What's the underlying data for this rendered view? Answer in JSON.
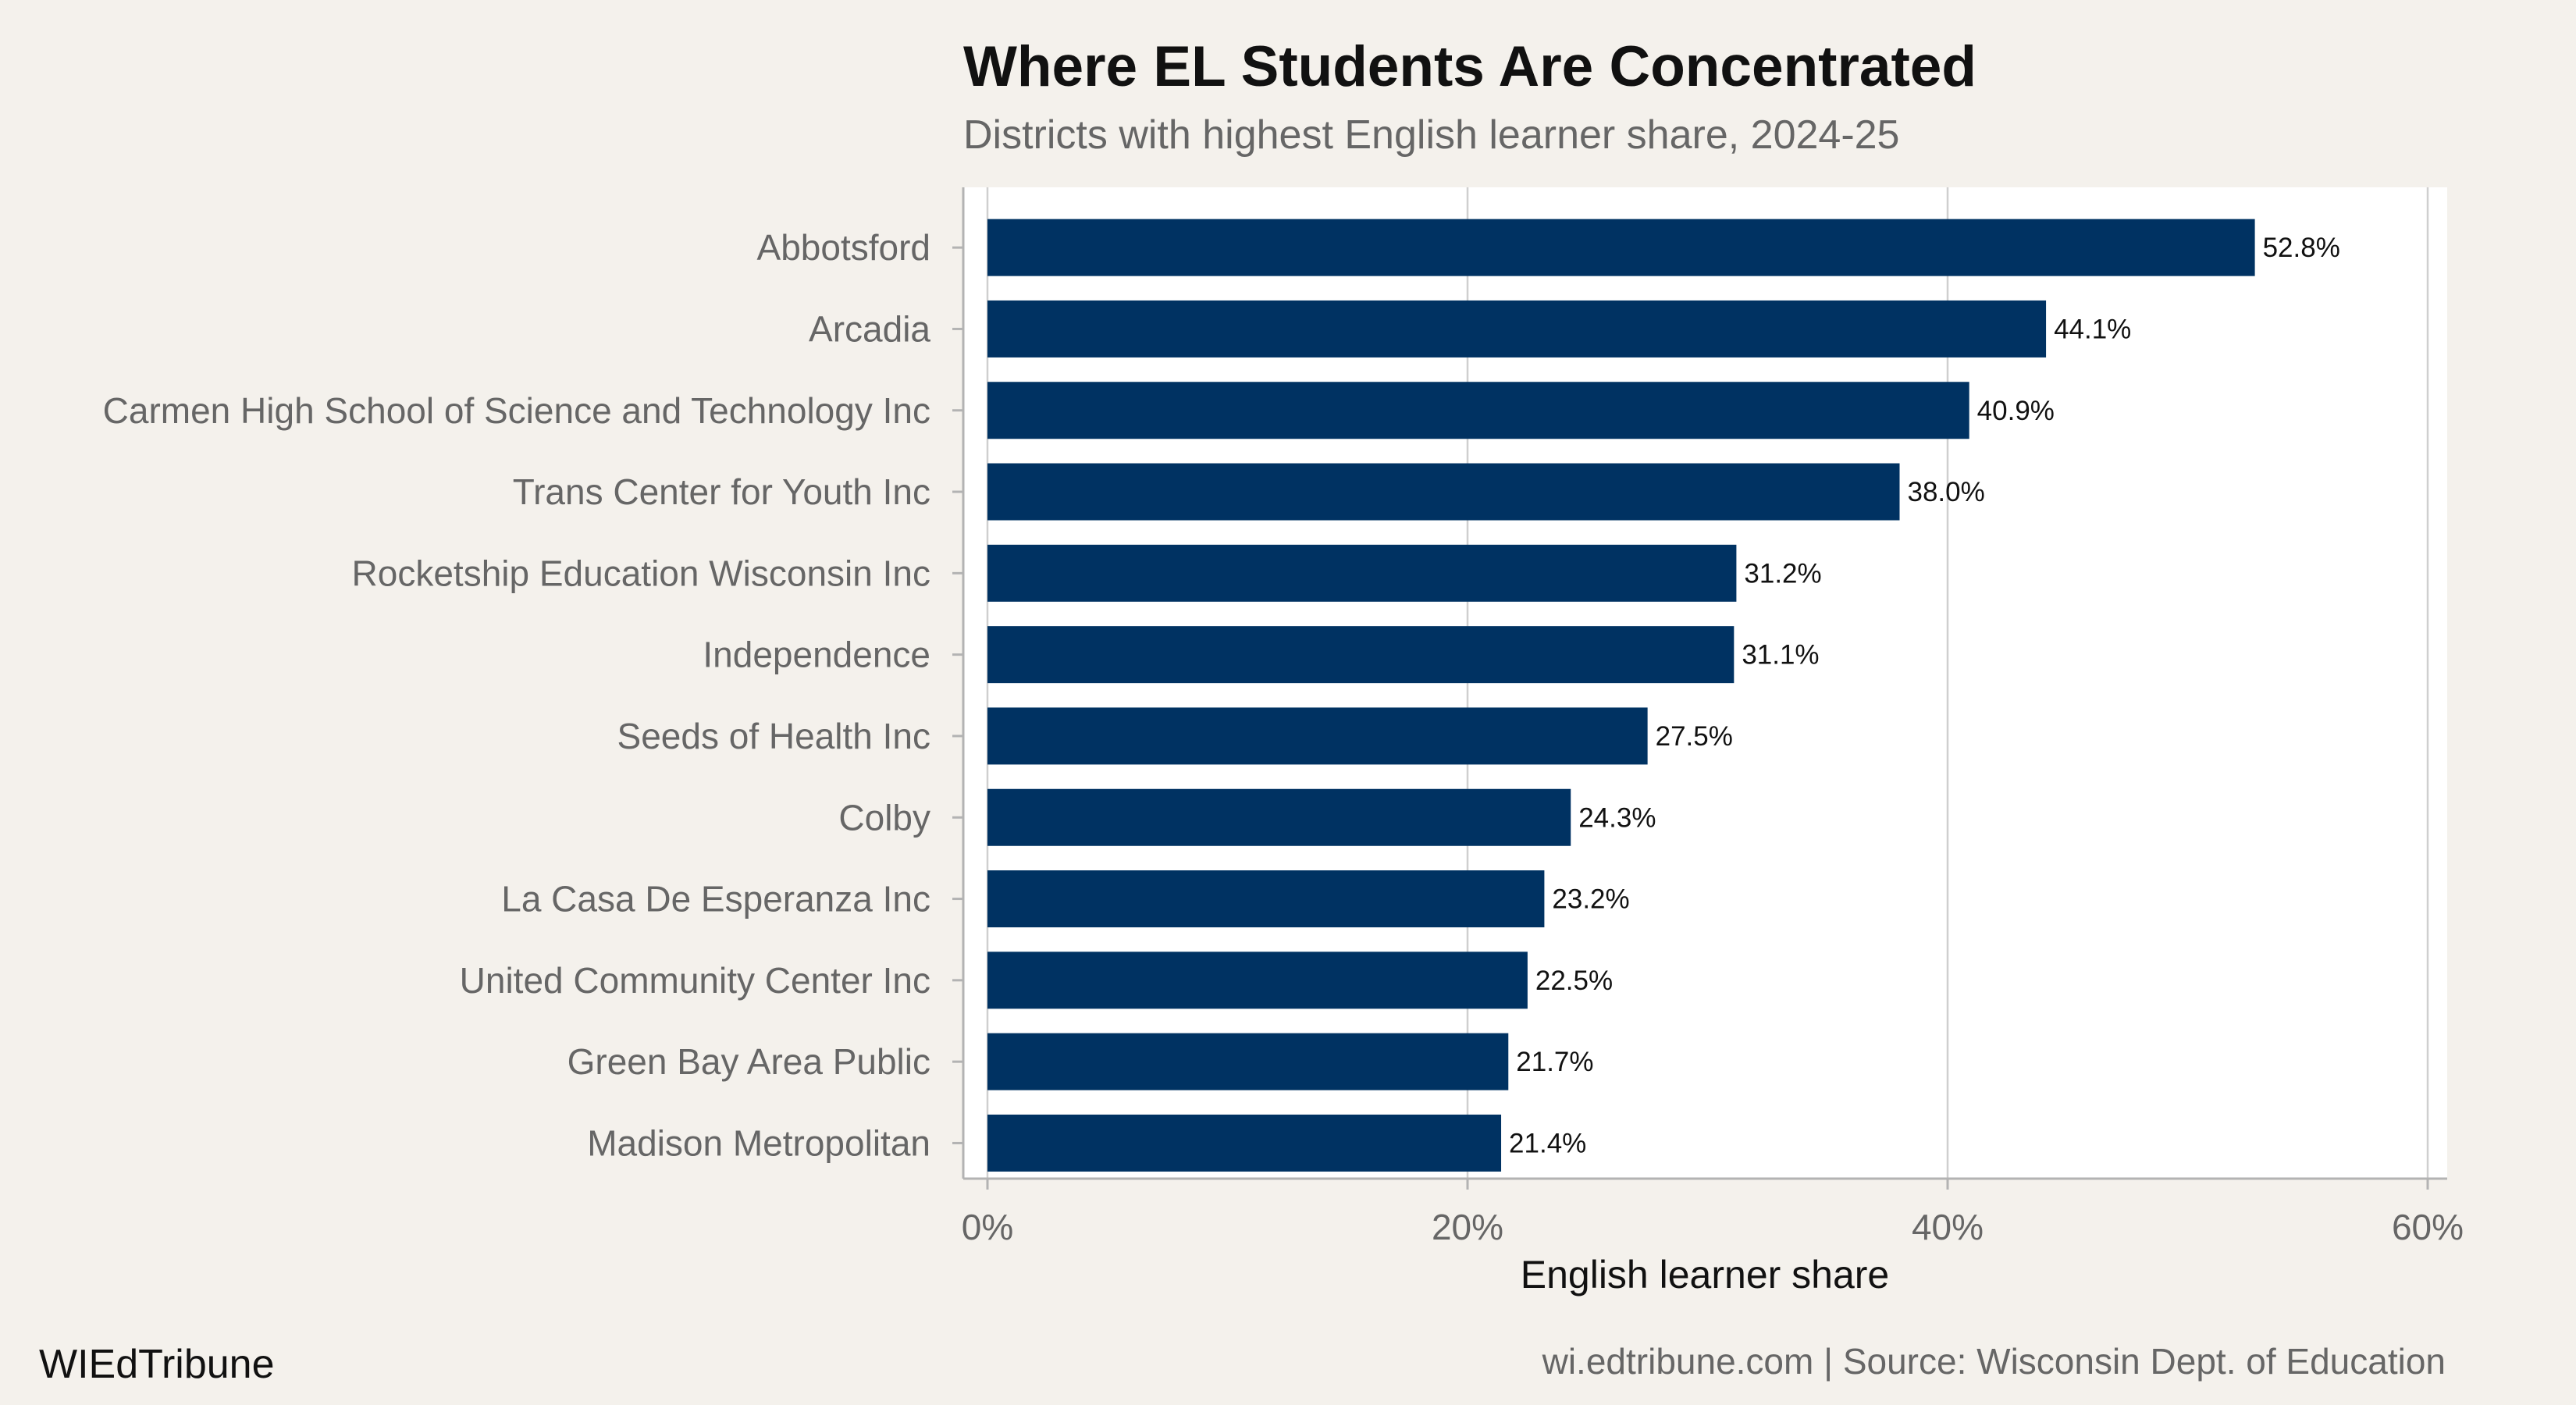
{
  "chart_data": {
    "type": "bar",
    "orientation": "horizontal",
    "title": "Where EL Students Are Concentrated",
    "subtitle": "Districts with highest English learner share, 2024-25",
    "xlabel": "English learner share",
    "ylabel": "",
    "xlim": [
      0,
      60
    ],
    "x_ticks": [
      0,
      20,
      40,
      60
    ],
    "x_tick_labels": [
      "0%",
      "20%",
      "40%",
      "60%"
    ],
    "grid": true,
    "categories": [
      "Abbotsford",
      "Arcadia",
      "Carmen High School of Science and Technology Inc",
      "Trans Center for Youth Inc",
      "Rocketship Education Wisconsin Inc",
      "Independence",
      "Seeds of Health Inc",
      "Colby",
      "La Casa De Esperanza Inc",
      "United Community Center Inc",
      "Green Bay Area Public",
      "Madison Metropolitan"
    ],
    "values": [
      52.8,
      44.1,
      40.9,
      38.0,
      31.2,
      31.1,
      27.5,
      24.3,
      23.2,
      22.5,
      21.7,
      21.4
    ],
    "value_labels": [
      "52.8%",
      "44.1%",
      "40.9%",
      "38.0%",
      "31.2%",
      "31.1%",
      "27.5%",
      "24.3%",
      "23.2%",
      "22.5%",
      "21.7%",
      "21.4%"
    ],
    "bar_color": "#003262"
  },
  "footer": {
    "brand": "WIEdTribune",
    "source": "wi.edtribune.com | Source: Wisconsin Dept. of Education"
  }
}
